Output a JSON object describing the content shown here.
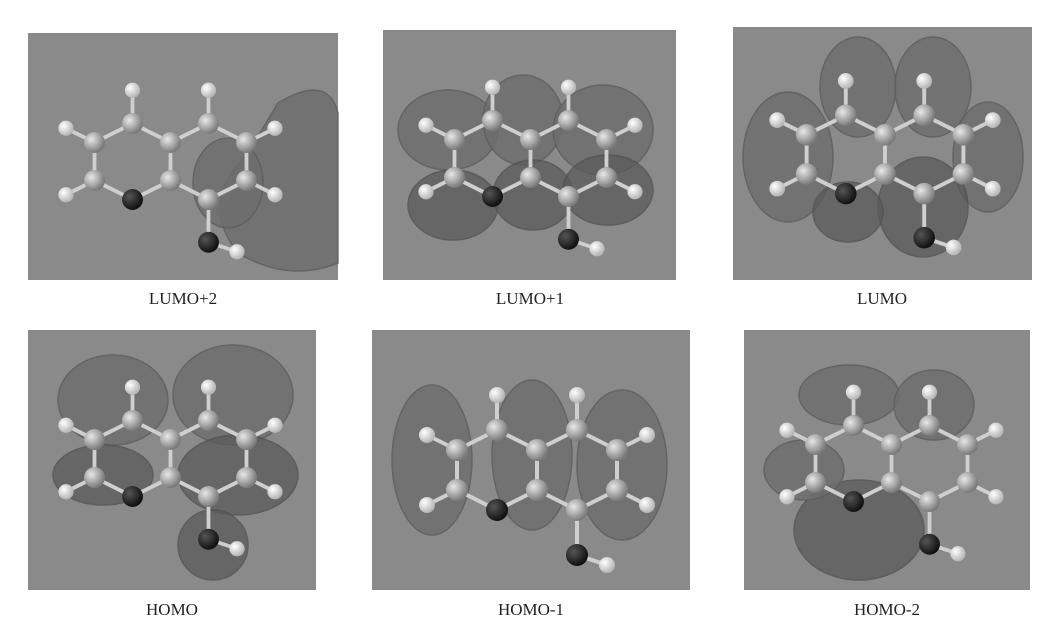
{
  "figures": [
    {
      "label": "LUMO+2"
    },
    {
      "label": "LUMO+1"
    },
    {
      "label": "LUMO"
    },
    {
      "label": "HOMO"
    },
    {
      "label": "HOMO-1"
    },
    {
      "label": "HOMO-2"
    }
  ]
}
